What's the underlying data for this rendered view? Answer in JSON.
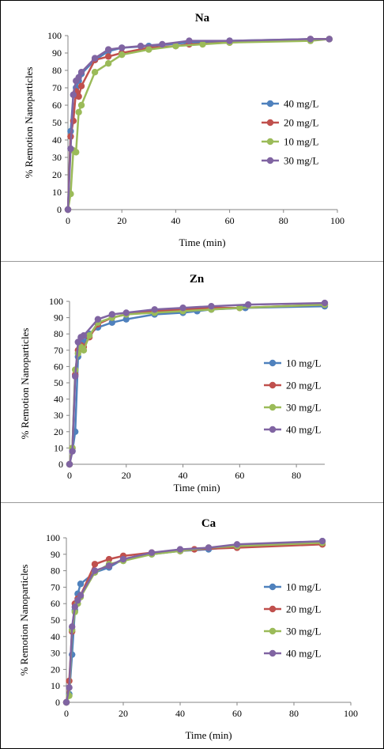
{
  "chart_data": [
    {
      "type": "line",
      "title": "Na",
      "xlabel": "Time (min)",
      "ylabel": "% Remotion Nanoparticles",
      "xlim": [
        0,
        100
      ],
      "ylim": [
        0,
        100
      ],
      "xticks": [
        "0",
        "20",
        "40",
        "60",
        "80",
        "100"
      ],
      "yticks": [
        "0",
        "10",
        "20",
        "30",
        "40",
        "50",
        "60",
        "70",
        "80",
        "90",
        "100"
      ],
      "grid": false,
      "legend": "right",
      "series": [
        {
          "name": "40 mg/L",
          "color": "#4f81bd",
          "x": [
            0,
            1,
            2,
            3,
            4,
            5,
            10,
            15,
            20,
            30,
            45,
            60,
            90,
            97
          ],
          "y": [
            0,
            45,
            66,
            70,
            74,
            78,
            86,
            91,
            93,
            94,
            96,
            97,
            98,
            98
          ]
        },
        {
          "name": "20 mg/L",
          "color": "#c0504d",
          "x": [
            0,
            1,
            2,
            3,
            4,
            5,
            10,
            15,
            20,
            30,
            40,
            45,
            60,
            90,
            97
          ],
          "y": [
            0,
            42,
            51,
            68,
            65,
            71,
            86,
            88,
            90,
            93,
            94,
            95,
            96,
            98,
            98
          ]
        },
        {
          "name": "10 mg/L",
          "color": "#9bbb59",
          "x": [
            0,
            1,
            2,
            3,
            4,
            5,
            10,
            15,
            20,
            30,
            40,
            50,
            60,
            90,
            97
          ],
          "y": [
            0,
            9,
            34,
            33,
            56,
            60,
            79,
            84,
            89,
            92,
            94,
            95,
            96,
            97,
            98
          ]
        },
        {
          "name": "30 mg/L",
          "color": "#8064a2",
          "x": [
            0,
            1,
            2,
            3,
            4,
            5,
            10,
            15,
            20,
            27,
            35,
            45,
            60,
            90,
            97
          ],
          "y": [
            0,
            35,
            66,
            74,
            76,
            79,
            87,
            92,
            93,
            94,
            95,
            97,
            97,
            98,
            98
          ]
        }
      ]
    },
    {
      "type": "line",
      "title": "Zn",
      "xlabel": "Time (min)",
      "ylabel": "% Remotion Nanoparticles",
      "xlim": [
        0,
        90
      ],
      "ylim": [
        0,
        100
      ],
      "xticks": [
        "0",
        "20",
        "40",
        "60",
        "80"
      ],
      "yticks": [
        "0",
        "10",
        "20",
        "30",
        "40",
        "50",
        "60",
        "70",
        "80",
        "90",
        "100"
      ],
      "grid": false,
      "legend": "right",
      "series": [
        {
          "name": "10 mg/L",
          "color": "#4f81bd",
          "x": [
            0,
            1,
            2,
            3,
            4,
            5,
            7,
            10,
            15,
            20,
            30,
            40,
            45,
            50,
            62,
            90
          ],
          "y": [
            0,
            8,
            20,
            66,
            73,
            75,
            80,
            84,
            87,
            89,
            92,
            93,
            94,
            95,
            96,
            97
          ]
        },
        {
          "name": "20 mg/L",
          "color": "#c0504d",
          "x": [
            0,
            1,
            2,
            3,
            4,
            5,
            7,
            10,
            15,
            20,
            30,
            40,
            50,
            60,
            90
          ],
          "y": [
            0,
            10,
            55,
            70,
            73,
            72,
            78,
            86,
            90,
            92,
            94,
            95,
            96,
            96,
            98
          ]
        },
        {
          "name": "30 mg/L",
          "color": "#9bbb59",
          "x": [
            0,
            1,
            2,
            3,
            4,
            5,
            7,
            10,
            15,
            20,
            30,
            40,
            50,
            60,
            90
          ],
          "y": [
            0,
            10,
            58,
            68,
            72,
            70,
            79,
            87,
            90,
            92,
            93,
            94,
            95,
            96,
            98
          ]
        },
        {
          "name": "40 mg/L",
          "color": "#8064a2",
          "x": [
            0,
            1,
            2,
            3,
            4,
            5,
            10,
            15,
            20,
            30,
            40,
            50,
            63,
            90
          ],
          "y": [
            0,
            8,
            54,
            75,
            78,
            79,
            89,
            92,
            93,
            95,
            96,
            97,
            98,
            99
          ]
        }
      ]
    },
    {
      "type": "line",
      "title": "Ca",
      "xlabel": "Time (min)",
      "ylabel": "% Remotion Nanoparticles",
      "xlim": [
        0,
        100
      ],
      "ylim": [
        0,
        100
      ],
      "xticks": [
        "0",
        "20",
        "40",
        "60",
        "80",
        "100"
      ],
      "yticks": [
        "0",
        "10",
        "20",
        "30",
        "40",
        "50",
        "60",
        "70",
        "80",
        "90",
        "100"
      ],
      "grid": false,
      "legend": "right",
      "series": [
        {
          "name": "10 mg/L",
          "color": "#4f81bd",
          "x": [
            0,
            1,
            2,
            3,
            4,
            5,
            10,
            15,
            20,
            30,
            40,
            50,
            60,
            90
          ],
          "y": [
            0,
            5,
            29,
            56,
            66,
            72,
            79,
            82,
            87,
            90,
            92,
            93,
            95,
            98
          ]
        },
        {
          "name": "20 mg/L",
          "color": "#c0504d",
          "x": [
            0,
            1,
            2,
            3,
            4,
            5,
            10,
            15,
            20,
            30,
            40,
            45,
            60,
            90
          ],
          "y": [
            0,
            13,
            43,
            60,
            63,
            65,
            84,
            87,
            89,
            91,
            92,
            93,
            94,
            96
          ]
        },
        {
          "name": "30 mg/L",
          "color": "#9bbb59",
          "x": [
            0,
            1,
            2,
            3,
            4,
            5,
            10,
            15,
            20,
            30,
            40,
            50,
            60,
            90
          ],
          "y": [
            0,
            4,
            44,
            55,
            60,
            64,
            79,
            84,
            86,
            90,
            92,
            94,
            95,
            97
          ]
        },
        {
          "name": "40 mg/L",
          "color": "#8064a2",
          "x": [
            0,
            1,
            2,
            3,
            4,
            5,
            10,
            15,
            20,
            30,
            40,
            50,
            60,
            90
          ],
          "y": [
            0,
            9,
            46,
            58,
            62,
            65,
            80,
            83,
            87,
            91,
            93,
            94,
            96,
            98
          ]
        }
      ]
    }
  ]
}
